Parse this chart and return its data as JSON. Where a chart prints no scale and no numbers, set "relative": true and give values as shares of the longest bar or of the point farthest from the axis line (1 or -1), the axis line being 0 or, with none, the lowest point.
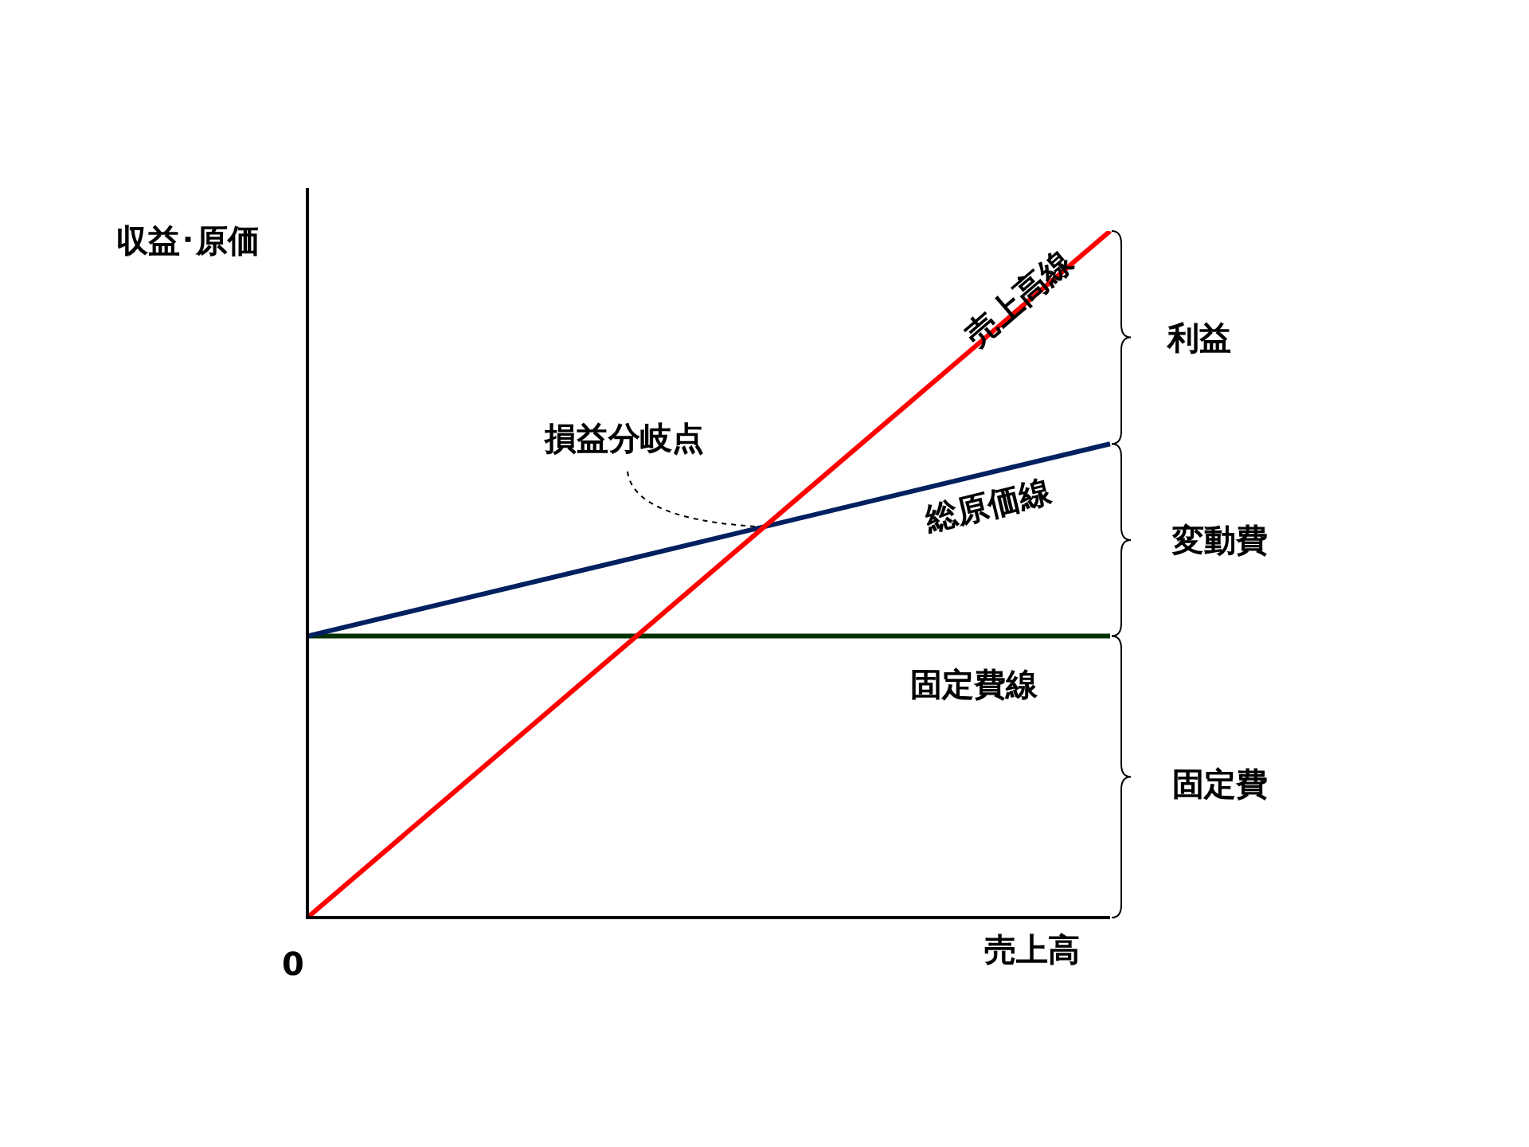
{
  "chart_data": {
    "type": "line",
    "relative": true,
    "xlabel": "売上高",
    "ylabel": "収益･原価",
    "categories": [
      null,
      null
    ],
    "legend": false,
    "marker": "none",
    "line_style": "solid",
    "series": [
      {
        "name": "売上高線",
        "color": "#ff0000",
        "values": [
          0,
          1
        ]
      },
      {
        "name": "総原価線",
        "color": "#002060",
        "values": [
          0.41,
          0.69
        ]
      },
      {
        "name": "固定費線",
        "color": "#003300",
        "values": [
          0.41,
          0.41
        ]
      }
    ],
    "annotations": [
      "損益分岐点",
      "利益",
      "変動費",
      "固定費",
      "0"
    ]
  }
}
